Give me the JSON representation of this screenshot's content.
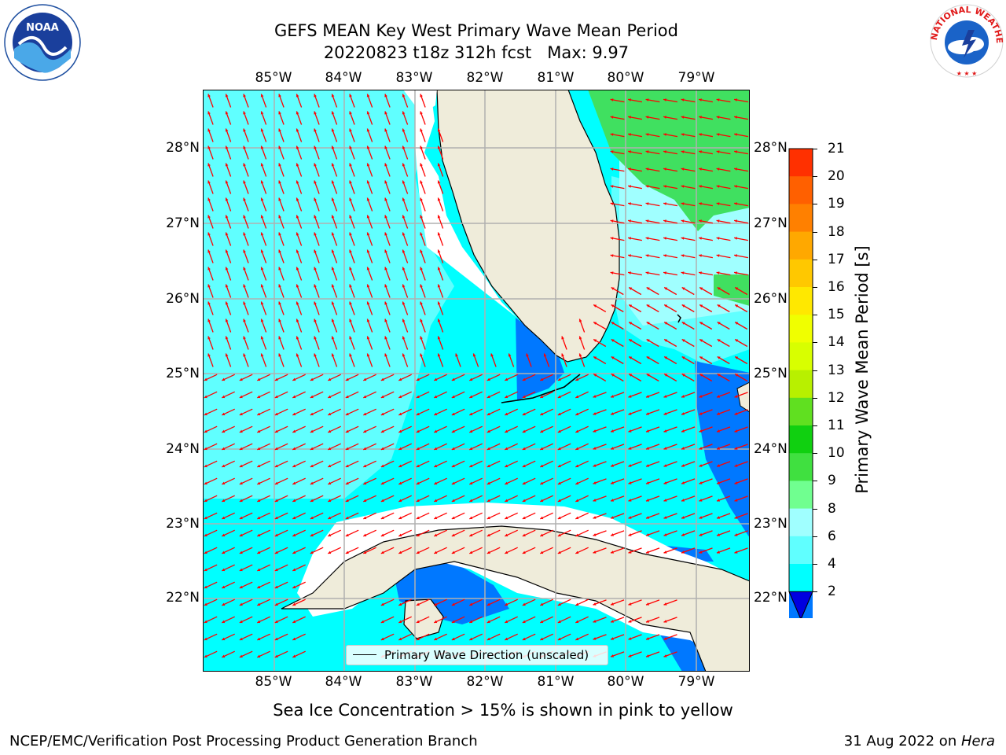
{
  "title_line1": "GEFS MEAN Key West Primary Wave Mean Period",
  "title_line2": "20220823 t18z 312h fcst   Max: 9.97",
  "lon_ticks": [
    "85°W",
    "84°W",
    "83°W",
    "82°W",
    "81°W",
    "80°W",
    "79°W"
  ],
  "lat_ticks": [
    "28°N",
    "27°N",
    "26°N",
    "25°N",
    "24°N",
    "23°N",
    "22°N"
  ],
  "colorbar": {
    "label": "Primary Wave Mean Period [s]",
    "ticks": [
      "21",
      "20",
      "19",
      "18",
      "17",
      "16",
      "15",
      "14",
      "13",
      "12",
      "11",
      "10",
      "9",
      "8",
      "6",
      "4",
      "2"
    ],
    "colors": [
      "#ff0000",
      "#ff3000",
      "#ff6000",
      "#ff8000",
      "#ffa800",
      "#ffc800",
      "#ffe800",
      "#f0ff00",
      "#d8ff00",
      "#b8f000",
      "#60e020",
      "#10d010",
      "#40e040",
      "#70ff90",
      "#a0ffff",
      "#60ffff",
      "#00ffff",
      "#0078ff",
      "#0000e0"
    ]
  },
  "legend_label": "Primary Wave Direction (unscaled)",
  "subtitle": "Sea Ice Concentration > 15% is shown in pink to yellow",
  "footer_left": "NCEP/EMC/Verification Post Processing Product Generation Branch",
  "footer_right_date": "31 Aug 2022 on ",
  "footer_right_machine": "Hera",
  "logos": {
    "left": "noaa-logo",
    "right": "national-weather-service-logo",
    "nws_text": "NATIONAL WEATHER SERVICE",
    "noaa_text": "NOAA"
  },
  "colors": {
    "land": "#efecda",
    "ocean_main": "#00ffff",
    "ocean_light": "#60ffff",
    "ocean_deep": "#0078ff",
    "green": "#40e060",
    "arrows": "#ff0000"
  }
}
